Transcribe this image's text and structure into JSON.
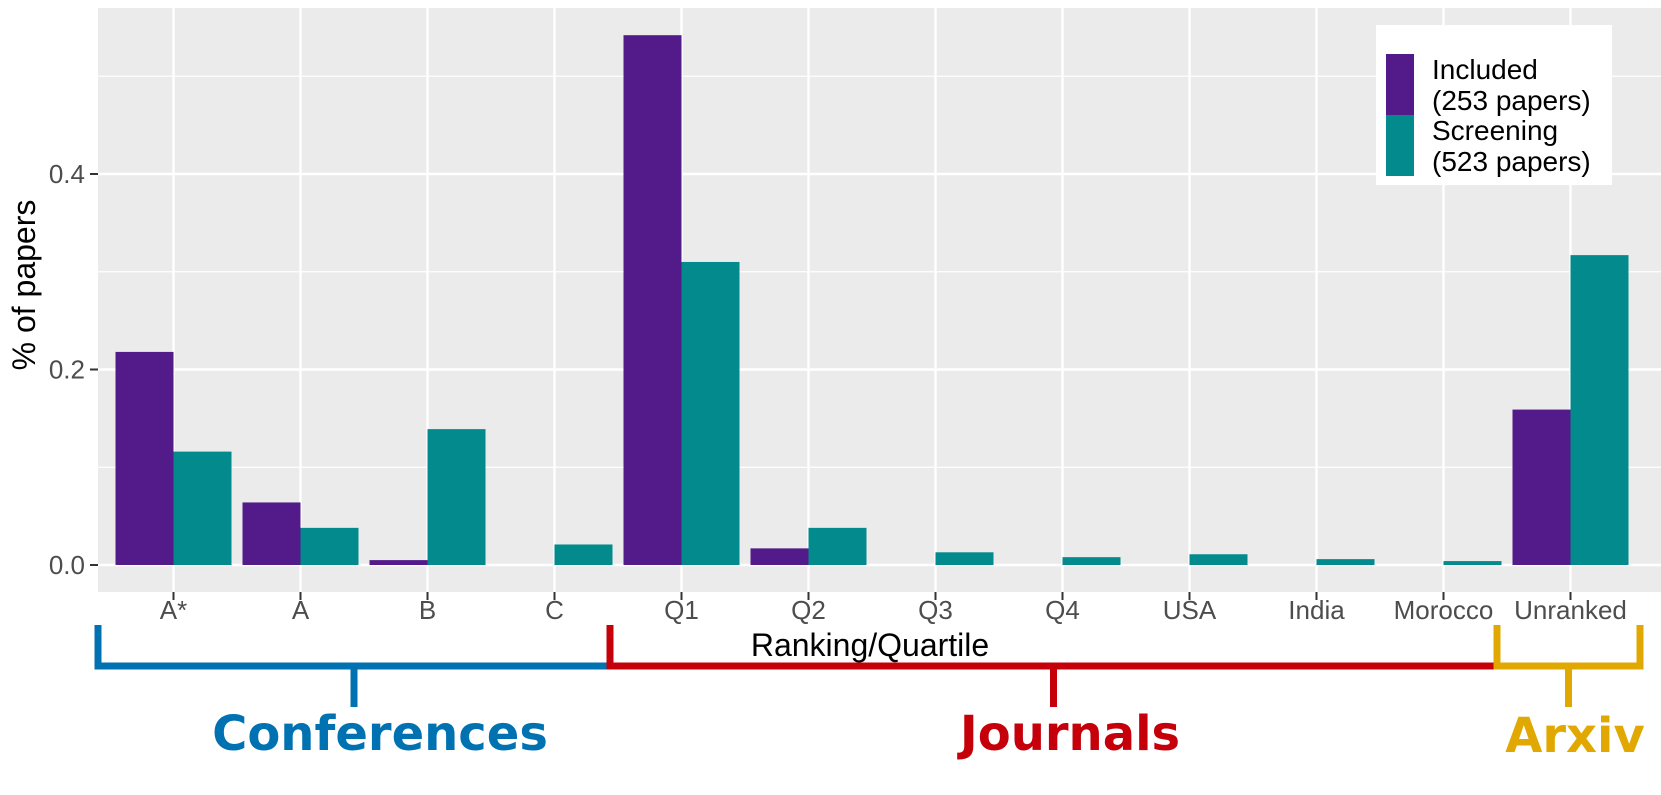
{
  "chart_data": {
    "type": "bar",
    "categories": [
      "A*",
      "A",
      "B",
      "C",
      "Q1",
      "Q2",
      "Q3",
      "Q4",
      "USA",
      "India",
      "Morocco",
      "Unranked"
    ],
    "series": [
      {
        "name": "Included\n(253 papers)",
        "color": "#531b8a",
        "values": [
          0.218,
          0.064,
          0.005,
          0.0,
          0.542,
          0.017,
          0.0,
          0.0,
          0.0,
          0.0,
          0.0,
          0.159
        ]
      },
      {
        "name": "Screening\n(523 papers)",
        "color": "#028a8c",
        "values": [
          0.116,
          0.038,
          0.139,
          0.021,
          0.31,
          0.038,
          0.013,
          0.008,
          0.011,
          0.006,
          0.004,
          0.317
        ]
      }
    ],
    "xlabel": "Ranking/Quartile",
    "ylabel": "% of papers",
    "ylim": [
      -0.025,
      0.57
    ],
    "yticks": [
      0.0,
      0.2,
      0.4
    ],
    "ytick_labels": [
      "0.0",
      "0.2",
      "0.4"
    ],
    "grid": true,
    "legend_position": "top-right",
    "groups": [
      {
        "label": "Conferences",
        "color": "#0072b2",
        "from": "A*",
        "to": "C"
      },
      {
        "label": "Journals",
        "color": "#c5000b",
        "from": "Q1",
        "to": "Morocco"
      },
      {
        "label": "Arxiv",
        "color": "#e0a800",
        "from": "Unranked",
        "to": "Unranked"
      }
    ],
    "panel_background": "#ebebeb",
    "grid_color": "#ffffff"
  }
}
